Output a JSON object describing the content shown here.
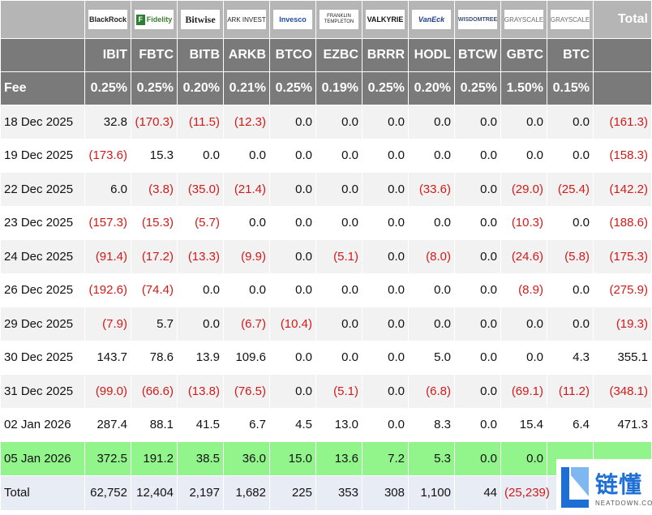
{
  "header": {
    "total_label": "Total",
    "fee_label": "Fee",
    "funds": [
      {
        "issuer": "BlackRock",
        "ticker": "IBIT",
        "fee": "0.25%",
        "logo_icon": "blackrock-logo"
      },
      {
        "issuer": "Fidelity",
        "ticker": "FBTC",
        "fee": "0.25%",
        "logo_icon": "fidelity-logo"
      },
      {
        "issuer": "Bitwise",
        "ticker": "BITB",
        "fee": "0.20%",
        "logo_icon": "bitwise-logo"
      },
      {
        "issuer": "ARK INVEST",
        "ticker": "ARKB",
        "fee": "0.21%",
        "logo_icon": "ark-invest-logo"
      },
      {
        "issuer": "Invesco",
        "ticker": "BTCO",
        "fee": "0.25%",
        "logo_icon": "invesco-logo"
      },
      {
        "issuer": "FRANKLIN TEMPLETON",
        "ticker": "EZBC",
        "fee": "0.19%",
        "logo_icon": "franklin-templeton-logo"
      },
      {
        "issuer": "VALKYRIE",
        "ticker": "BRRR",
        "fee": "0.25%",
        "logo_icon": "valkyrie-logo"
      },
      {
        "issuer": "VanEck",
        "ticker": "HODL",
        "fee": "0.20%",
        "logo_icon": "vaneck-logo"
      },
      {
        "issuer": "WISDOMTREE",
        "ticker": "BTCW",
        "fee": "0.25%",
        "logo_icon": "wisdomtree-logo"
      },
      {
        "issuer": "GRAYSCALE",
        "ticker": "GBTC",
        "fee": "1.50%",
        "logo_icon": "grayscale-logo"
      },
      {
        "issuer": "GRAYSCALE",
        "ticker": "BTC",
        "fee": "0.15%",
        "logo_icon": "grayscale-logo"
      }
    ]
  },
  "rows": [
    {
      "date": "18 Dec 2025",
      "values": [
        "32.8",
        "(170.3)",
        "(11.5)",
        "(12.3)",
        "0.0",
        "0.0",
        "0.0",
        "0.0",
        "0.0",
        "0.0",
        "0.0"
      ],
      "total": "(161.3)"
    },
    {
      "date": "19 Dec 2025",
      "values": [
        "(173.6)",
        "15.3",
        "0.0",
        "0.0",
        "0.0",
        "0.0",
        "0.0",
        "0.0",
        "0.0",
        "0.0",
        "0.0"
      ],
      "total": "(158.3)"
    },
    {
      "date": "22 Dec 2025",
      "values": [
        "6.0",
        "(3.8)",
        "(35.0)",
        "(21.4)",
        "0.0",
        "0.0",
        "0.0",
        "(33.6)",
        "0.0",
        "(29.0)",
        "(25.4)"
      ],
      "total": "(142.2)"
    },
    {
      "date": "23 Dec 2025",
      "values": [
        "(157.3)",
        "(15.3)",
        "(5.7)",
        "0.0",
        "0.0",
        "0.0",
        "0.0",
        "0.0",
        "0.0",
        "(10.3)",
        "0.0"
      ],
      "total": "(188.6)"
    },
    {
      "date": "24 Dec 2025",
      "values": [
        "(91.4)",
        "(17.2)",
        "(13.3)",
        "(9.9)",
        "0.0",
        "(5.1)",
        "0.0",
        "(8.0)",
        "0.0",
        "(24.6)",
        "(5.8)"
      ],
      "total": "(175.3)"
    },
    {
      "date": "26 Dec 2025",
      "values": [
        "(192.6)",
        "(74.4)",
        "0.0",
        "0.0",
        "0.0",
        "0.0",
        "0.0",
        "0.0",
        "0.0",
        "(8.9)",
        "0.0"
      ],
      "total": "(275.9)"
    },
    {
      "date": "29 Dec 2025",
      "values": [
        "(7.9)",
        "5.7",
        "0.0",
        "(6.7)",
        "(10.4)",
        "0.0",
        "0.0",
        "0.0",
        "0.0",
        "0.0",
        "0.0"
      ],
      "total": "(19.3)"
    },
    {
      "date": "30 Dec 2025",
      "values": [
        "143.7",
        "78.6",
        "13.9",
        "109.6",
        "0.0",
        "0.0",
        "0.0",
        "5.0",
        "0.0",
        "0.0",
        "4.3"
      ],
      "total": "355.1"
    },
    {
      "date": "31 Dec 2025",
      "values": [
        "(99.0)",
        "(66.6)",
        "(13.8)",
        "(76.5)",
        "0.0",
        "(5.1)",
        "0.0",
        "(6.8)",
        "0.0",
        "(69.1)",
        "(11.2)"
      ],
      "total": "(348.1)"
    },
    {
      "date": "02 Jan 2026",
      "values": [
        "287.4",
        "88.1",
        "41.5",
        "6.7",
        "4.5",
        "13.0",
        "0.0",
        "8.3",
        "0.0",
        "15.4",
        "6.4"
      ],
      "total": "471.3"
    },
    {
      "date": "05 Jan 2026",
      "values": [
        "372.5",
        "191.2",
        "38.5",
        "36.0",
        "15.0",
        "13.6",
        "7.2",
        "5.3",
        "0.0",
        "0.0",
        ""
      ],
      "total": "",
      "highlight": true
    }
  ],
  "totals_row": {
    "label": "Total",
    "values": [
      "62,752",
      "12,404",
      "2,197",
      "1,682",
      "225",
      "353",
      "308",
      "1,100",
      "44",
      "(25,239)",
      ""
    ],
    "total": ""
  },
  "watermark": {
    "cn": "链懂",
    "en": "NEATDOWN.COM"
  },
  "colors": {
    "header_dark": "#7a7a7a",
    "header_light": "#b5b5b5",
    "negative": "#d11a1a",
    "highlight": "#92f58c",
    "totals_bg": "#e8edf5",
    "stripe": "#f2f2f2"
  }
}
